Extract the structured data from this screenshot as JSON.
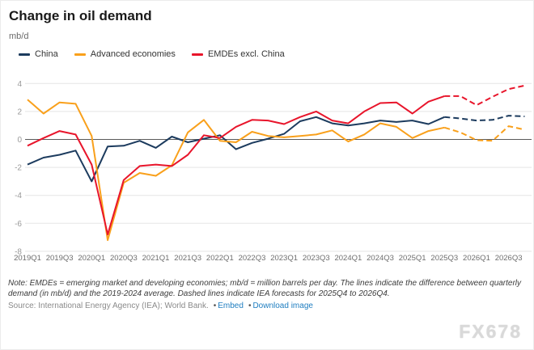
{
  "header": {
    "title": "Change in oil demand",
    "unit": "mb/d"
  },
  "legend": {
    "items": [
      {
        "label": "China",
        "color": "#1c3b5e"
      },
      {
        "label": "Advanced economies",
        "color": "#f9a01b"
      },
      {
        "label": "EMDEs excl. China",
        "color": "#e8152b"
      }
    ]
  },
  "chart_data": {
    "type": "line",
    "title": "Change in oil demand",
    "ylabel": "mb/d",
    "ylim": [
      -8,
      4
    ],
    "yticks": [
      4,
      2,
      0,
      -2,
      -4,
      -6,
      -8
    ],
    "grid": "horizontal",
    "legend_position": "top-left",
    "x": [
      "2019Q1",
      "2019Q2",
      "2019Q3",
      "2019Q4",
      "2020Q1",
      "2020Q2",
      "2020Q3",
      "2020Q4",
      "2021Q1",
      "2021Q2",
      "2021Q3",
      "2021Q4",
      "2022Q1",
      "2022Q2",
      "2022Q3",
      "2022Q4",
      "2023Q1",
      "2023Q2",
      "2023Q3",
      "2023Q4",
      "2024Q1",
      "2024Q2",
      "2024Q3",
      "2024Q4",
      "2025Q1",
      "2025Q2",
      "2025Q3",
      "2025Q4",
      "2026Q1",
      "2026Q2",
      "2026Q3",
      "2026Q4"
    ],
    "xtick_labels": [
      "2019Q1",
      "2019Q3",
      "2020Q1",
      "2020Q3",
      "2021Q1",
      "2021Q3",
      "2022Q1",
      "2022Q3",
      "2023Q1",
      "2023Q3",
      "2024Q1",
      "2024Q3",
      "2025Q1",
      "2025Q3",
      "2026Q1",
      "2026Q3"
    ],
    "forecast_start_index": 26,
    "forecast_note": "Dashed lines from 2025Q4 to 2026Q4 are IEA forecasts",
    "series": [
      {
        "name": "China",
        "color": "#1c3b5e",
        "values": [
          -1.8,
          -1.3,
          -1.1,
          -0.8,
          -3.0,
          -0.5,
          -0.45,
          -0.1,
          -0.6,
          0.2,
          -0.2,
          0.05,
          0.3,
          -0.7,
          -0.25,
          0.05,
          0.4,
          1.3,
          1.6,
          1.15,
          1.0,
          1.15,
          1.35,
          1.25,
          1.35,
          1.1,
          1.6,
          1.5,
          1.35,
          1.4,
          1.7,
          1.65
        ]
      },
      {
        "name": "Advanced economies",
        "color": "#f9a01b",
        "values": [
          2.85,
          1.85,
          2.65,
          2.55,
          0.25,
          -7.2,
          -3.1,
          -2.4,
          -2.6,
          -1.85,
          0.5,
          1.4,
          -0.1,
          -0.2,
          0.55,
          0.25,
          0.15,
          0.25,
          0.35,
          0.65,
          -0.15,
          0.35,
          1.15,
          0.9,
          0.1,
          0.6,
          0.85,
          0.5,
          -0.05,
          -0.1,
          0.95,
          0.7
        ]
      },
      {
        "name": "EMDEs excl. China",
        "color": "#e8152b",
        "values": [
          -0.45,
          0.1,
          0.6,
          0.35,
          -1.8,
          -6.8,
          -2.9,
          -1.9,
          -1.8,
          -1.9,
          -1.1,
          0.3,
          0.1,
          0.9,
          1.4,
          1.35,
          1.1,
          1.6,
          2.0,
          1.35,
          1.15,
          2.0,
          2.6,
          2.65,
          1.85,
          2.7,
          3.1,
          3.1,
          2.45,
          3.05,
          3.6,
          3.85
        ]
      }
    ]
  },
  "note": "Note: EMDEs = emerging market and developing economies; mb/d = million barrels per day. The lines indicate the difference between quarterly demand (in mb/d) and the 2019-2024 average. Dashed lines indicate IEA forecasts for 2025Q4 to 2026Q4.",
  "source": {
    "prefix": "Source: International Energy Agency (IEA); World Bank.",
    "bullet": "•",
    "links": [
      {
        "label": "Embed"
      },
      {
        "label": "Download image"
      }
    ],
    "link_color": "#1e7dc0"
  },
  "watermark": "FX678"
}
